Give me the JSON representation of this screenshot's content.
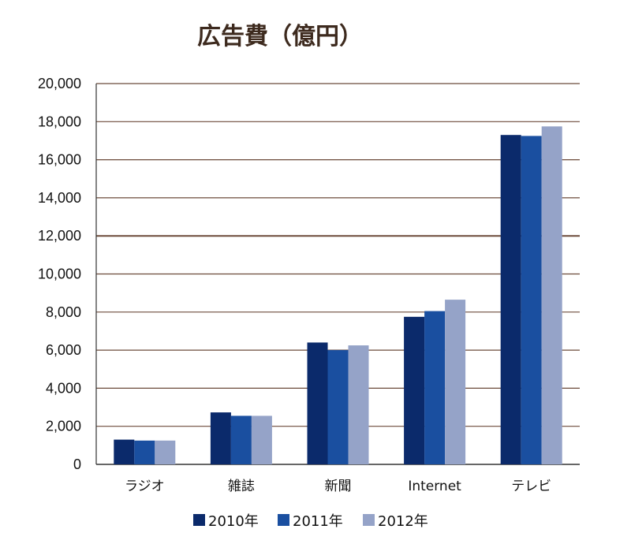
{
  "chart_data": {
    "type": "bar",
    "title": "広告費（億円）",
    "categories": [
      "ラジオ",
      "雑誌",
      "新聞",
      "Internet",
      "テレビ"
    ],
    "series": [
      {
        "name": "2010年",
        "color": "#0b2a6b",
        "values": [
          1300,
          2730,
          6400,
          7750,
          17300
        ]
      },
      {
        "name": "2011年",
        "color": "#1a4fa0",
        "values": [
          1250,
          2550,
          6000,
          8050,
          17250
        ]
      },
      {
        "name": "2012年",
        "color": "#95a3c8",
        "values": [
          1250,
          2550,
          6250,
          8650,
          17750
        ]
      }
    ],
    "ylim": [
      0,
      20000
    ],
    "yticks": [
      "0",
      "2,000",
      "4,000",
      "6,000",
      "8,000",
      "10,000",
      "12,000",
      "14,000",
      "16,000",
      "18,000",
      "20,000"
    ],
    "grid": true,
    "legend": "bottom",
    "gridline_color": "#6b4a3a"
  }
}
